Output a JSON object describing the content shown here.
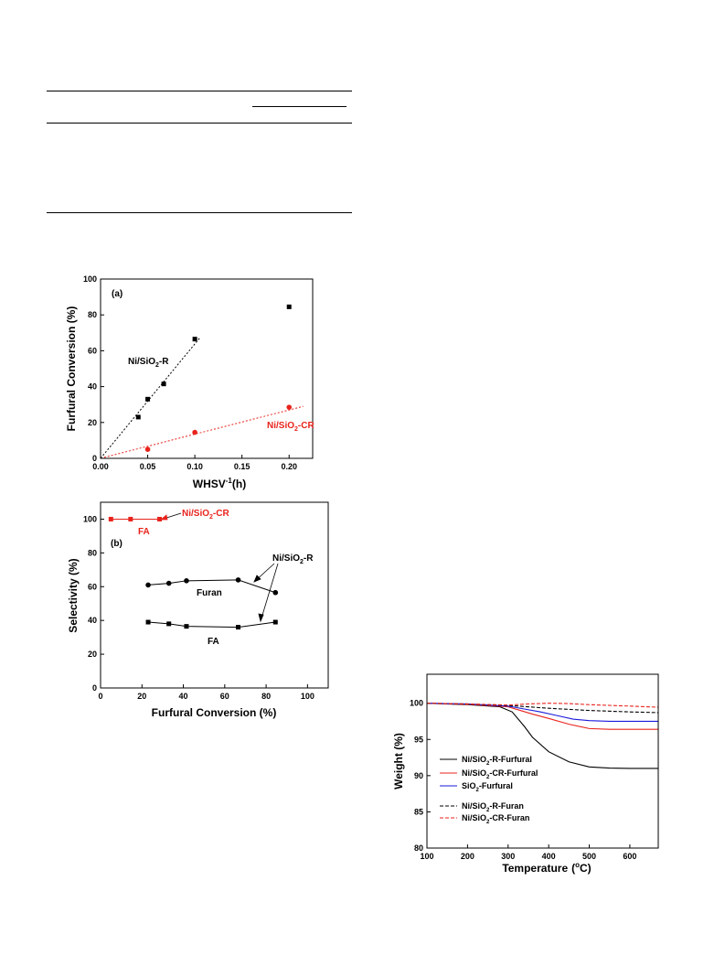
{
  "chart_data": [
    {
      "id": "panel-a",
      "type": "scatter",
      "panel_label": "(a)",
      "xlabel": "WHSV",
      "xlabel_sup": "-1",
      "xlabel_unit": "(h)",
      "ylabel": "Furfural Conversion (%)",
      "xlim": [
        0.0,
        0.225
      ],
      "ylim": [
        0,
        100
      ],
      "x_ticks": [
        "0.00",
        "0.05",
        "0.10",
        "0.15",
        "0.20"
      ],
      "y_ticks": [
        "0",
        "20",
        "40",
        "60",
        "80",
        "100"
      ],
      "series": [
        {
          "name": "Ni/SiO2-R",
          "label_main": "Ni/SiO",
          "label_sub": "2",
          "label_tail": "-R",
          "color": "#000000",
          "marker": "square",
          "x": [
            0.04,
            0.05,
            0.067,
            0.1,
            0.2
          ],
          "y": [
            23,
            33,
            41.5,
            66.5,
            84.5
          ],
          "trend": {
            "x": [
              0.0,
              0.105
            ],
            "y": [
              0,
              67
            ]
          }
        },
        {
          "name": "Ni/SiO2-CR",
          "label_main": "Ni/SiO",
          "label_sub": "2",
          "label_tail": "-CR",
          "color": "#e8231c",
          "marker": "circle",
          "x": [
            0.05,
            0.1,
            0.2
          ],
          "y": [
            5,
            14.5,
            28.5
          ],
          "trend": {
            "x": [
              0.0,
              0.215
            ],
            "y": [
              0,
              29
            ]
          }
        }
      ]
    },
    {
      "id": "panel-b",
      "type": "line",
      "panel_label": "(b)",
      "xlabel": "Furfural Conversion (%)",
      "ylabel": "Selectivity (%)",
      "xlim": [
        0,
        110
      ],
      "ylim": [
        0,
        110
      ],
      "x_ticks": [
        "0",
        "20",
        "40",
        "60",
        "80",
        "100"
      ],
      "y_ticks": [
        "0",
        "20",
        "40",
        "60",
        "80",
        "100"
      ],
      "series": [
        {
          "name": "Furan",
          "color": "#000000",
          "marker": "circle",
          "x": [
            23,
            33,
            41.5,
            66.5,
            84.5
          ],
          "y": [
            61,
            62,
            63.5,
            64,
            56.5
          ]
        },
        {
          "name": "FA",
          "color": "#000000",
          "marker": "square",
          "x": [
            23,
            33,
            41.5,
            66.5,
            84.5
          ],
          "y": [
            39,
            38,
            36.5,
            36,
            39
          ]
        },
        {
          "name": "FA",
          "color": "#e8231c",
          "marker": "square",
          "x": [
            5,
            14.5,
            28.5
          ],
          "y": [
            100,
            100,
            100
          ]
        }
      ],
      "annotations": {
        "ni_r": {
          "main": "Ni/SiO",
          "sub": "2",
          "tail": "-R"
        },
        "ni_cr": {
          "main": "Ni/SiO",
          "sub": "2",
          "tail": "-CR"
        },
        "furan": "Furan",
        "fa_black": "FA",
        "fa_red": "FA"
      }
    },
    {
      "id": "panel-tga",
      "type": "line",
      "xlabel": "Temperature",
      "xlabel_unit_open": "(",
      "xlabel_unit_sup": "o",
      "xlabel_unit_close": "C)",
      "ylabel": "Weight (%)",
      "xlim": [
        100,
        670
      ],
      "ylim": [
        80,
        104
      ],
      "x_ticks": [
        "100",
        "200",
        "300",
        "400",
        "500",
        "600"
      ],
      "y_ticks": [
        "80",
        "85",
        "90",
        "95",
        "100"
      ],
      "legend_position": "bottom-left",
      "series": [
        {
          "name": "Ni/SiO2-R-Furfural",
          "label_main": "Ni/SiO",
          "label_sub": "2",
          "label_tail": "-R-Furfural",
          "color": "#000000",
          "dash": false,
          "x": [
            100,
            200,
            280,
            310,
            340,
            360,
            400,
            450,
            500,
            550,
            600,
            670
          ],
          "y": [
            100,
            99.8,
            99.5,
            98.8,
            96.8,
            95.3,
            93.3,
            91.9,
            91.2,
            91.05,
            91.0,
            91.0
          ]
        },
        {
          "name": "Ni/SiO2-CR-Furfural",
          "label_main": "Ni/SiO",
          "label_sub": "2",
          "label_tail": "-CR-Furfural",
          "color": "#e8231c",
          "dash": false,
          "x": [
            100,
            200,
            300,
            330,
            360,
            400,
            450,
            500,
            550,
            600,
            670
          ],
          "y": [
            100,
            99.85,
            99.5,
            99.0,
            98.5,
            97.9,
            97.1,
            96.5,
            96.4,
            96.4,
            96.4
          ]
        },
        {
          "name": "SiO2-Furfural",
          "label_main": "SiO",
          "label_sub": "2",
          "label_tail": "-Furfural",
          "color": "#1a1adb",
          "dash": false,
          "x": [
            100,
            200,
            300,
            340,
            380,
            420,
            460,
            500,
            550,
            600,
            670
          ],
          "y": [
            100,
            99.9,
            99.6,
            99.2,
            98.8,
            98.3,
            97.8,
            97.6,
            97.5,
            97.5,
            97.5
          ]
        },
        {
          "name": "Ni/SiO2-R-Furan",
          "label_main": "Ni/SiO",
          "label_sub": "2",
          "label_tail": "-R-Furan",
          "color": "#000000",
          "dash": true,
          "x": [
            100,
            200,
            300,
            400,
            500,
            600,
            670
          ],
          "y": [
            100,
            99.9,
            99.7,
            99.3,
            99.0,
            98.8,
            98.7
          ]
        },
        {
          "name": "Ni/SiO2-CR-Furan",
          "label_main": "Ni/SiO",
          "label_sub": "2",
          "label_tail": "-CR-Furan",
          "color": "#e8231c",
          "dash": true,
          "x": [
            100,
            200,
            300,
            350,
            400,
            450,
            500,
            600,
            670
          ],
          "y": [
            100,
            99.9,
            99.75,
            99.9,
            100.0,
            99.95,
            99.8,
            99.6,
            99.45
          ]
        }
      ]
    }
  ]
}
